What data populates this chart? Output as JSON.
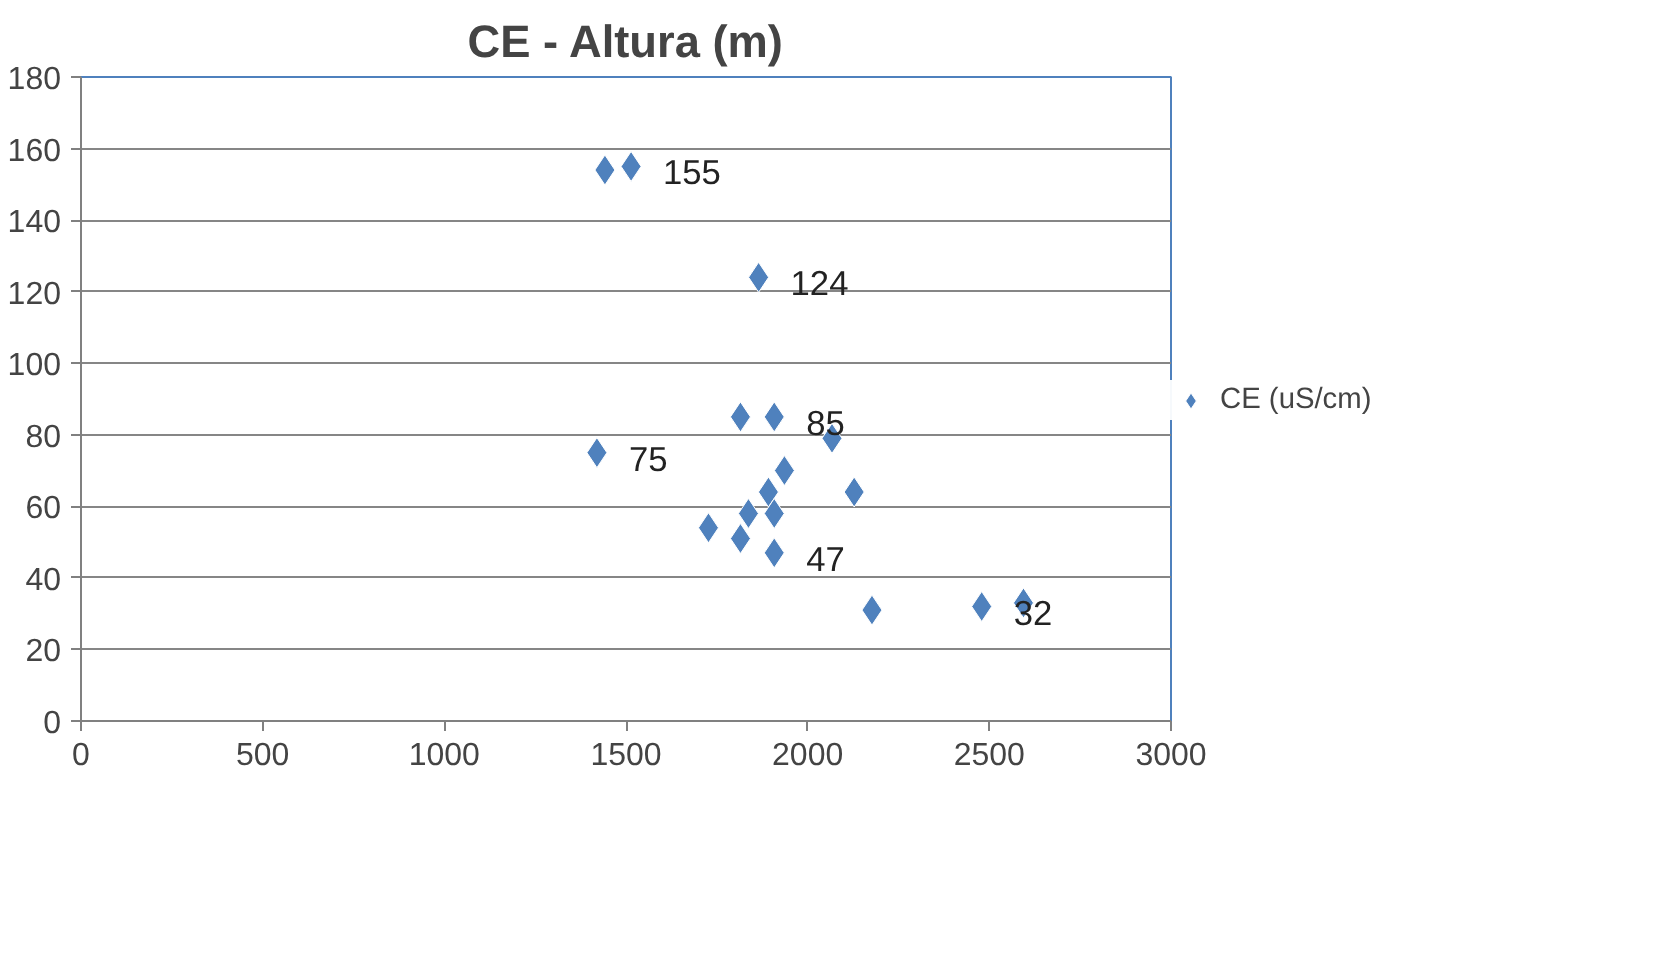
{
  "chart_data": {
    "type": "scatter",
    "title": "CE - Altura (m)",
    "marker": "diamond",
    "grid": "y",
    "legend": "right",
    "xlim": [
      0,
      3000
    ],
    "xticks": [
      0,
      500,
      1000,
      1500,
      2000,
      2500,
      3000
    ],
    "ylim": [
      0,
      180
    ],
    "yticks": [
      0,
      20,
      40,
      60,
      80,
      100,
      120,
      140,
      160,
      180
    ],
    "series": [
      {
        "name": "CE (uS/cm)",
        "color": "#4f81bd",
        "x": [
          1442,
          1514,
          1865,
          1815,
          1908,
          2067,
          1420,
          1936,
          1892,
          2128,
          1837,
          1908,
          1727,
          1815,
          1908,
          2177,
          2479,
          2594
        ],
        "values": [
          154,
          155,
          124,
          85,
          85,
          79,
          75,
          70,
          64,
          64,
          58,
          58,
          54,
          51,
          47,
          31,
          32,
          33
        ],
        "value_labels": [
          null,
          "155",
          "124",
          null,
          "85",
          null,
          "75",
          null,
          null,
          null,
          null,
          null,
          null,
          null,
          "47",
          null,
          "32",
          null
        ]
      }
    ]
  }
}
